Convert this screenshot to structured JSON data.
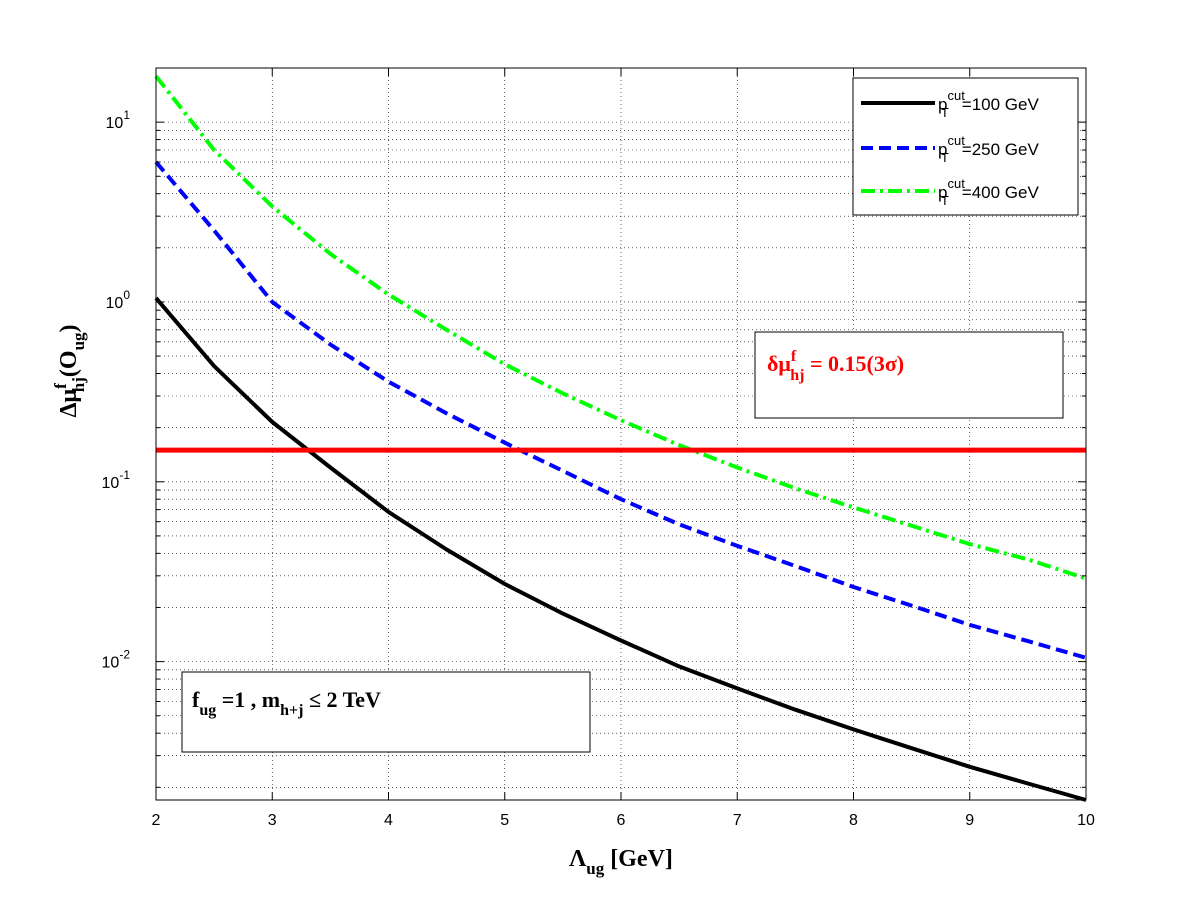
{
  "chart_data": {
    "type": "line",
    "xlabel": {
      "main": "Λ",
      "sub": "ug",
      "rest": " [GeV]"
    },
    "ylabel": {
      "main": "Δμ",
      "sup": "f",
      "sub": "hj",
      "rest": "(O",
      "sub2": "ug",
      "close": ")"
    },
    "xlim": [
      2,
      10
    ],
    "ylim": [
      0.0017,
      20
    ],
    "yscale": "log",
    "grid": true,
    "x_ticks": [
      "2",
      "3",
      "4",
      "5",
      "6",
      "7",
      "8",
      "9",
      "10"
    ],
    "y_ticks": [
      {
        "base": "10",
        "exp": "-2"
      },
      {
        "base": "10",
        "exp": "-1"
      },
      {
        "base": "10",
        "exp": "0"
      },
      {
        "base": "10",
        "exp": "1"
      }
    ],
    "legend_position": "top-right",
    "series": [
      {
        "label": {
          "p": "p",
          "sup": "cut",
          "sub": "T",
          "rest": "=100 GeV"
        },
        "color": "#000000",
        "style": "solid",
        "x": [
          2,
          2.5,
          3,
          3.5,
          4,
          4.5,
          5,
          5.5,
          6,
          6.5,
          7,
          7.5,
          8,
          8.5,
          9,
          9.5,
          10
        ],
        "y": [
          1.05,
          0.44,
          0.215,
          0.12,
          0.068,
          0.042,
          0.027,
          0.0185,
          0.0131,
          0.0094,
          0.0071,
          0.0054,
          0.0042,
          0.0033,
          0.0026,
          0.0021,
          0.0017
        ]
      },
      {
        "label": {
          "p": "p",
          "sup": "cut",
          "sub": "T",
          "rest": "=250 GeV"
        },
        "color": "#0000ff",
        "style": "dashed",
        "x": [
          2,
          2.5,
          3,
          3.5,
          4,
          4.5,
          5,
          5.5,
          6,
          6.5,
          7,
          7.5,
          8,
          8.5,
          9,
          9.5,
          10
        ],
        "y": [
          6.0,
          2.5,
          1.0,
          0.58,
          0.36,
          0.24,
          0.165,
          0.115,
          0.08,
          0.058,
          0.044,
          0.034,
          0.026,
          0.0205,
          0.016,
          0.013,
          0.0105
        ]
      },
      {
        "label": {
          "p": "p",
          "sup": "cut",
          "sub": "T",
          "rest": "=400 GeV"
        },
        "color": "#00ff00",
        "style": "dashdot",
        "x": [
          2,
          2.5,
          3,
          3.5,
          4,
          4.5,
          5,
          5.5,
          6,
          6.5,
          7,
          7.5,
          8,
          8.5,
          9,
          9.5,
          10
        ],
        "y": [
          18.0,
          7.0,
          3.4,
          1.85,
          1.1,
          0.7,
          0.45,
          0.31,
          0.22,
          0.16,
          0.12,
          0.092,
          0.072,
          0.057,
          0.045,
          0.037,
          0.029
        ]
      }
    ],
    "hline": {
      "y": 0.15,
      "color": "#ff0000"
    },
    "annotations": {
      "threshold": {
        "main": "δμ",
        "sup": "f",
        "sub": "hj",
        "rest": " = 0.15(3σ)",
        "color": "#ff0000"
      },
      "params": {
        "f": "f",
        "f_sub": "ug",
        "mid": " =1 , m",
        "m_sub": "h+j",
        "rest": " ≤ 2 TeV",
        "color": "#000000"
      }
    }
  }
}
